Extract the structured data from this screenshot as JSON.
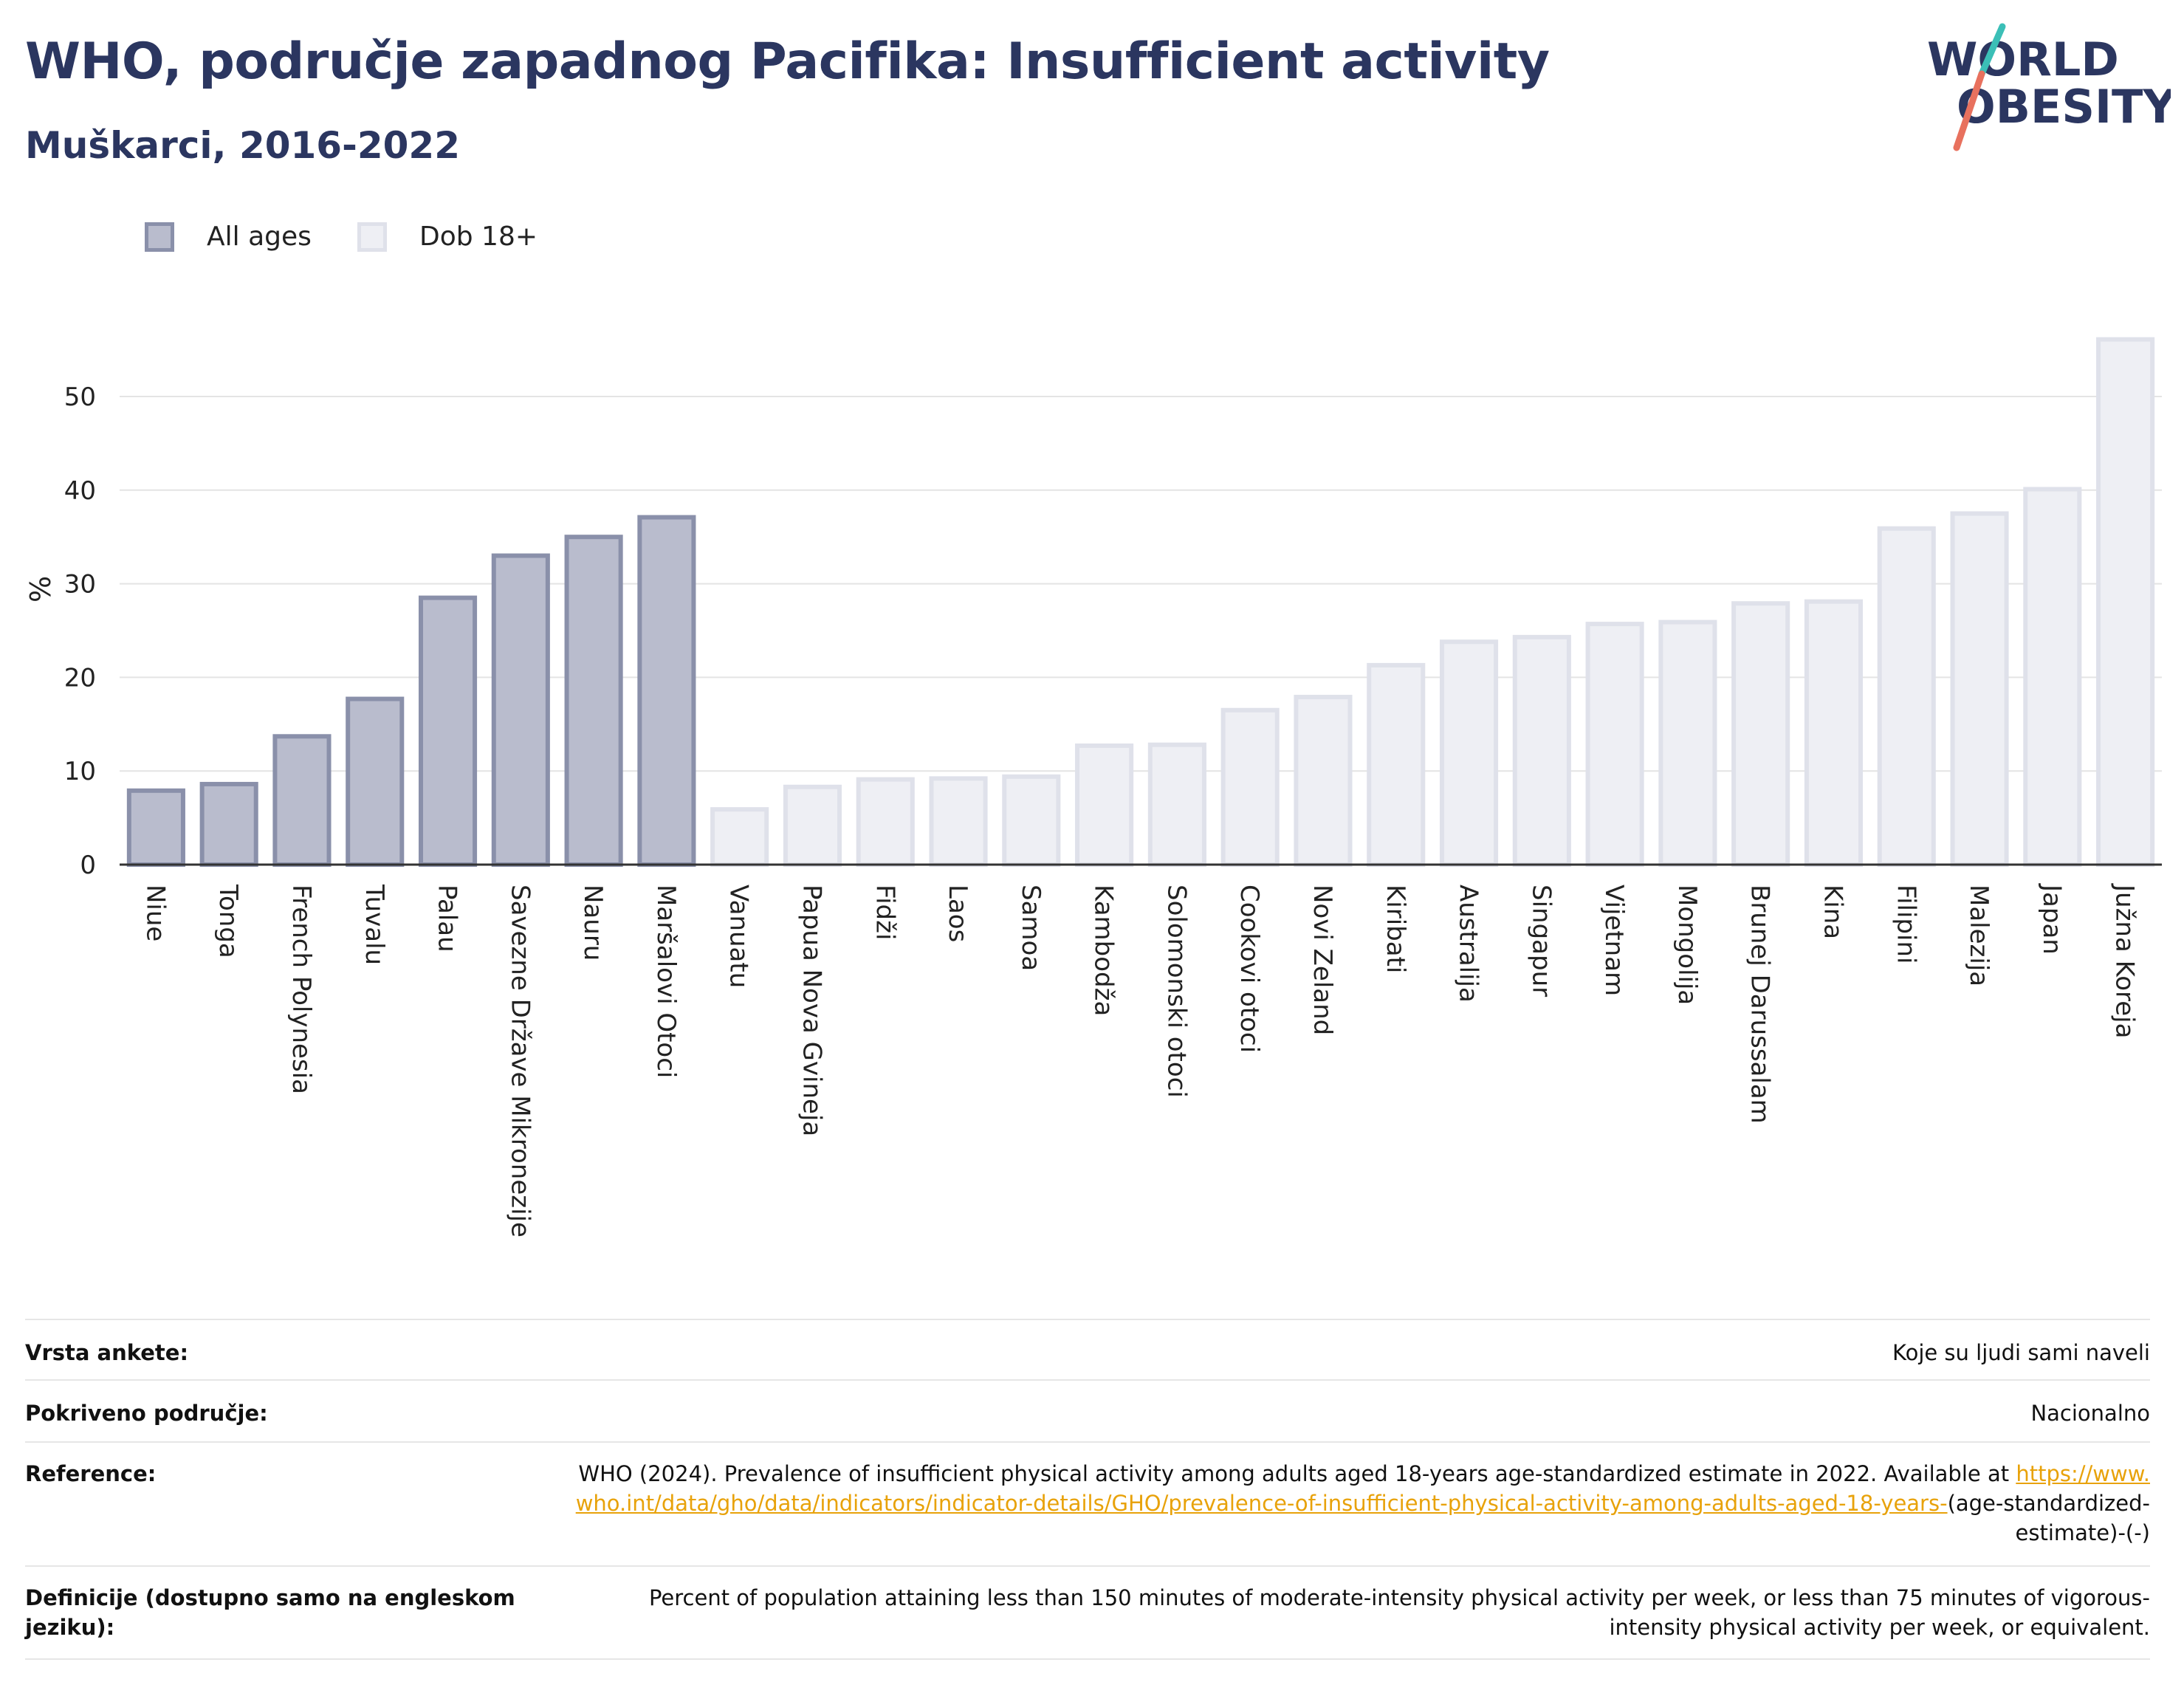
{
  "header": {
    "title": "WHO, područje zapadnog Pacifika: Insufficient activity",
    "subtitle": "Muškarci, 2016-2022"
  },
  "logo": {
    "line1": "WORLD",
    "line2": "OBESITY"
  },
  "legend": [
    {
      "label": "All ages",
      "color": "#8a90aa"
    },
    {
      "label": "Dob 18+",
      "color": "#dfe1ea"
    }
  ],
  "chart_data": {
    "type": "bar",
    "title": "WHO, područje zapadnog Pacifika: Insufficient activity",
    "ylabel": "%",
    "ylim": [
      0,
      57
    ],
    "yticks": [
      0,
      10,
      20,
      30,
      40,
      50
    ],
    "grid": true,
    "legend_position": "top-left",
    "categories": [
      "Niue",
      "Tonga",
      "French Polynesia",
      "Tuvalu",
      "Palau",
      "Savezne Države Mikronezije",
      "Nauru",
      "Maršalovi Otoci",
      "Vanuatu",
      "Papua Nova Gvineja",
      "Fidži",
      "Laos",
      "Samoa",
      "Kambodža",
      "Solomonski otoci",
      "Cookovi otoci",
      "Novi Zeland",
      "Kiribati",
      "Australija",
      "Singapur",
      "Vijetnam",
      "Mongolija",
      "Brunej Darussalam",
      "Kina",
      "Filipini",
      "Malezija",
      "Japan",
      "Južna Koreja"
    ],
    "series": [
      {
        "name": "All ages",
        "color": "#8a90aa",
        "values": [
          7.9,
          8.6,
          13.7,
          17.7,
          28.5,
          33.0,
          35.0,
          37.1,
          null,
          null,
          null,
          null,
          null,
          null,
          null,
          null,
          null,
          null,
          null,
          null,
          null,
          null,
          null,
          null,
          null,
          null,
          null,
          null
        ]
      },
      {
        "name": "Dob 18+",
        "color": "#dfe1ea",
        "values": [
          null,
          null,
          null,
          null,
          null,
          null,
          null,
          null,
          5.9,
          8.3,
          9.1,
          9.2,
          9.4,
          12.7,
          12.8,
          16.5,
          17.9,
          21.3,
          23.8,
          24.3,
          25.7,
          25.9,
          27.9,
          28.1,
          35.9,
          37.5,
          40.1,
          56.1
        ]
      }
    ]
  },
  "info": {
    "survey_label": "Vrsta ankete:",
    "survey_value": "Koje su ljudi sami naveli",
    "coverage_label": "Pokriveno područje:",
    "coverage_value": "Nacionalno",
    "reference_label": "Reference:",
    "reference_text": "WHO (2024). Prevalence of insufficient physical activity among adults aged 18-years age-standardized estimate in 2022. Available at",
    "reference_link": "https://www.who.int/data/gho/data/indicators/indicator-details/GHO/prevalence-of-insufficient-physical-activity-among-adults-aged-18-years-",
    "reference_suffix": "(age-standardized-estimate)-(-)",
    "definition_label": "Definicije (dostupno samo na engleskom jeziku):",
    "definition_value": "Percent of population attaining less than 150 minutes of moderate-intensity physical activity per week, or less than 75 minutes of vigorous-intensity physical activity per week, or equivalent."
  }
}
